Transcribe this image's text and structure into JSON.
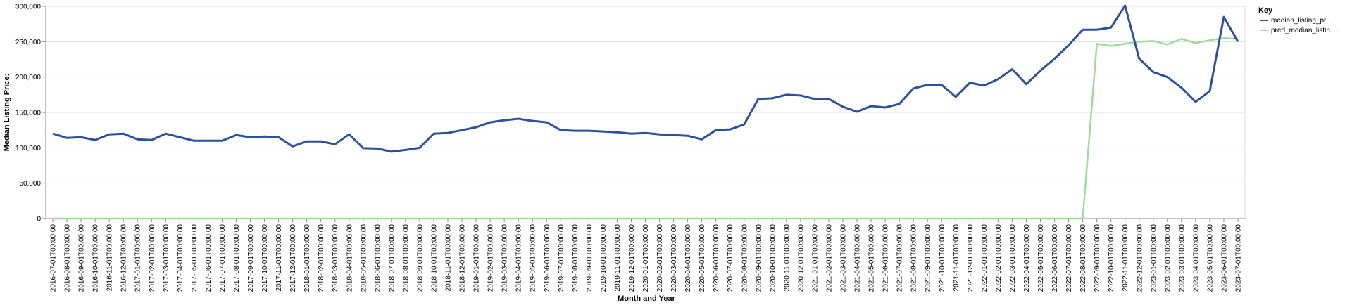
{
  "chart_data": {
    "type": "line",
    "xlabel": "Month and Year",
    "ylabel": "Median Listing Price:",
    "ylim": [
      0,
      300000
    ],
    "yticks": [
      "0",
      "50,000",
      "100,000",
      "150,000",
      "200,000",
      "250,000",
      "300,000"
    ],
    "grid": true,
    "legend": {
      "title": "Key",
      "placement": "right"
    },
    "x": [
      "2016-07-01T00:00:00",
      "2016-08-01T00:00:00",
      "2016-09-01T00:00:00",
      "2016-10-01T00:00:00",
      "2016-11-01T00:00:00",
      "2016-12-01T00:00:00",
      "2017-01-01T00:00:00",
      "2017-02-01T00:00:00",
      "2017-03-01T00:00:00",
      "2017-04-01T00:00:00",
      "2017-05-01T00:00:00",
      "2017-06-01T00:00:00",
      "2017-07-01T00:00:00",
      "2017-08-01T00:00:00",
      "2017-09-01T00:00:00",
      "2017-10-01T00:00:00",
      "2017-11-01T00:00:00",
      "2017-12-01T00:00:00",
      "2018-01-01T00:00:00",
      "2018-02-01T00:00:00",
      "2018-03-01T00:00:00",
      "2018-04-01T00:00:00",
      "2018-05-01T00:00:00",
      "2018-06-01T00:00:00",
      "2018-07-01T00:00:00",
      "2018-08-01T00:00:00",
      "2018-09-01T00:00:00",
      "2018-10-01T00:00:00",
      "2018-11-01T00:00:00",
      "2018-12-01T00:00:00",
      "2019-01-01T00:00:00",
      "2019-02-01T00:00:00",
      "2019-03-01T00:00:00",
      "2019-04-01T00:00:00",
      "2019-05-01T00:00:00",
      "2019-06-01T00:00:00",
      "2019-07-01T00:00:00",
      "2019-08-01T00:00:00",
      "2019-09-01T00:00:00",
      "2019-10-01T00:00:00",
      "2019-11-01T00:00:00",
      "2019-12-01T00:00:00",
      "2020-01-01T00:00:00",
      "2020-02-01T00:00:00",
      "2020-03-01T00:00:00",
      "2020-04-01T00:00:00",
      "2020-05-01T00:00:00",
      "2020-06-01T00:00:00",
      "2020-07-01T00:00:00",
      "2020-08-01T00:00:00",
      "2020-09-01T00:00:00",
      "2020-10-01T00:00:00",
      "2020-11-01T00:00:00",
      "2020-12-01T00:00:00",
      "2021-01-01T00:00:00",
      "2021-02-01T00:00:00",
      "2021-03-01T00:00:00",
      "2021-04-01T00:00:00",
      "2021-05-01T00:00:00",
      "2021-06-01T00:00:00",
      "2021-07-01T00:00:00",
      "2021-08-01T00:00:00",
      "2021-09-01T00:00:00",
      "2021-10-01T00:00:00",
      "2021-11-01T00:00:00",
      "2021-12-01T00:00:00",
      "2022-01-01T00:00:00",
      "2022-02-01T00:00:00",
      "2022-03-01T00:00:00",
      "2022-04-01T00:00:00",
      "2022-05-01T00:00:00",
      "2022-06-01T00:00:00",
      "2022-07-01T00:00:00",
      "2022-08-01T00:00:00",
      "2022-09-01T00:00:00",
      "2022-10-01T00:00:00",
      "2022-11-01T00:00:00",
      "2022-12-01T00:00:00",
      "2023-01-01T00:00:00",
      "2023-02-01T00:00:00",
      "2023-03-01T00:00:00",
      "2023-04-01T00:00:00",
      "2023-05-01T00:00:00",
      "2023-06-01T00:00:00",
      "2023-07-01T00:00:00"
    ],
    "series": [
      {
        "name": "median_listing_pri…",
        "color": "#2c4f9e",
        "values": [
          120000,
          114000,
          115000,
          111000,
          119000,
          120000,
          112000,
          111000,
          120000,
          115000,
          110000,
          110000,
          110000,
          118000,
          115000,
          116000,
          115000,
          102000,
          109000,
          109000,
          105000,
          119000,
          99500,
          99000,
          94500,
          97000,
          100000,
          120000,
          121000,
          125000,
          129000,
          136000,
          139000,
          141000,
          138000,
          136000,
          125000,
          124000,
          124000,
          123000,
          122000,
          120000,
          121000,
          119000,
          118000,
          117000,
          112000,
          125000,
          126000,
          133000,
          169000,
          170000,
          175000,
          174000,
          169000,
          169000,
          158000,
          151000,
          159000,
          157000,
          162000,
          184000,
          189000,
          189000,
          172000,
          192000,
          188000,
          197000,
          211000,
          190000,
          209000,
          226000,
          245000,
          267000,
          267000,
          270000,
          301000,
          226000,
          207000,
          200000,
          185000,
          165000,
          180000,
          285000,
          250000
        ]
      },
      {
        "name": "pred_median_listin…",
        "color": "#a1d99b",
        "values": [
          0,
          0,
          0,
          0,
          0,
          0,
          0,
          0,
          0,
          0,
          0,
          0,
          0,
          0,
          0,
          0,
          0,
          0,
          0,
          0,
          0,
          0,
          0,
          0,
          0,
          0,
          0,
          0,
          0,
          0,
          0,
          0,
          0,
          0,
          0,
          0,
          0,
          0,
          0,
          0,
          0,
          0,
          0,
          0,
          0,
          0,
          0,
          0,
          0,
          0,
          0,
          0,
          0,
          0,
          0,
          0,
          0,
          0,
          0,
          0,
          0,
          0,
          0,
          0,
          0,
          0,
          0,
          0,
          0,
          0,
          0,
          0,
          0,
          0,
          247000,
          244000,
          247000,
          250000,
          251000,
          246000,
          254000,
          248000,
          252000,
          255000,
          254000
        ]
      }
    ]
  }
}
